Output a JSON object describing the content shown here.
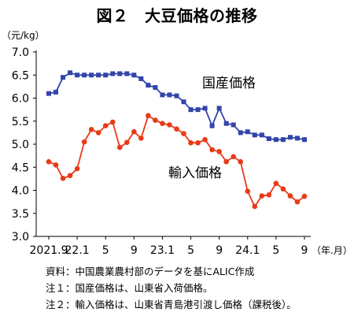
{
  "title": "図２　大豆価格の推移",
  "chart_data": {
    "type": "line",
    "ylabel": "（元/kg）",
    "xunit": "（年.月）",
    "ylim": [
      3.0,
      7.0
    ],
    "yticks": [
      "7.0",
      "6.5",
      "6.0",
      "5.5",
      "5.0",
      "4.5",
      "4.0",
      "3.5",
      "3.0"
    ],
    "x_tick_labels": [
      {
        "i": 0,
        "label": "2021.9"
      },
      {
        "i": 4,
        "label": "22.1"
      },
      {
        "i": 8,
        "label": "5"
      },
      {
        "i": 12,
        "label": "9"
      },
      {
        "i": 16,
        "label": "23.1"
      },
      {
        "i": 20,
        "label": "5"
      },
      {
        "i": 24,
        "label": "9"
      },
      {
        "i": 28,
        "label": "24.1"
      },
      {
        "i": 32,
        "label": "5"
      },
      {
        "i": 36,
        "label": "9"
      }
    ],
    "series": [
      {
        "name": "国産価格",
        "color": "#3344aa",
        "marker": "square",
        "values": [
          6.1,
          6.13,
          6.45,
          6.55,
          6.5,
          6.5,
          6.5,
          6.5,
          6.5,
          6.53,
          6.53,
          6.53,
          6.5,
          6.42,
          6.28,
          6.23,
          6.07,
          6.07,
          6.05,
          5.92,
          5.75,
          5.75,
          5.78,
          5.4,
          5.78,
          5.45,
          5.42,
          5.25,
          5.27,
          5.2,
          5.2,
          5.12,
          5.1,
          5.1,
          5.15,
          5.13,
          5.1
        ]
      },
      {
        "name": "輸入価格",
        "color": "#e83a17",
        "marker": "circle",
        "values": [
          4.62,
          4.55,
          4.26,
          4.32,
          4.47,
          5.05,
          5.32,
          5.25,
          5.4,
          5.48,
          4.93,
          5.04,
          5.27,
          5.13,
          5.62,
          5.52,
          5.45,
          5.42,
          5.33,
          5.23,
          5.03,
          5.03,
          5.1,
          4.88,
          4.84,
          4.62,
          4.73,
          4.62,
          3.98,
          3.65,
          3.88,
          3.9,
          4.15,
          4.03,
          3.88,
          3.75,
          3.87
        ]
      }
    ]
  },
  "notes": [
    "資料：中国農業農村部のデータを基にALIC作成",
    "注１：国産価格は、山東省入荷価格。",
    "注２：輸入価格は、山東省青島港引渡し価格（課税後）。"
  ]
}
